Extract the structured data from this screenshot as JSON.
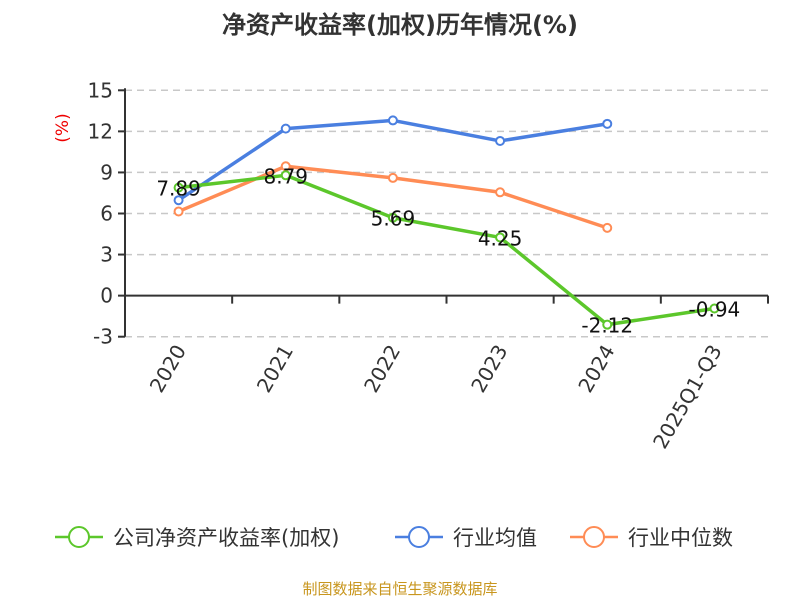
{
  "chart_data": {
    "type": "line",
    "title": "净资产收益率(加权)历年情况(%)",
    "ylabel": "(%)",
    "xlabel": "",
    "ylim": [
      -3,
      15
    ],
    "yticks": [
      "15",
      "12",
      "9",
      "6",
      "3",
      "0",
      "-3"
    ],
    "ytick_values": [
      15,
      12,
      9,
      6,
      3,
      0,
      -3
    ],
    "grid": true,
    "legend_position": "bottom",
    "categories": [
      "2020",
      "2021",
      "2022",
      "2023",
      "2024",
      "2025Q1-Q3"
    ],
    "series": [
      {
        "name": "公司净资产收益率(加权)",
        "color": "#5cc72b",
        "values": [
          7.89,
          8.79,
          5.69,
          4.25,
          -2.12,
          -0.94
        ],
        "labels": [
          "7.89",
          "8.79",
          "5.69",
          "4.25",
          "-2.12",
          "-0.94"
        ]
      },
      {
        "name": "行业均值",
        "color": "#4a7fe0",
        "values": [
          6.97,
          12.2,
          12.8,
          11.3,
          12.55,
          null
        ]
      },
      {
        "name": "行业中位数",
        "color": "#ff8c55",
        "values": [
          6.15,
          9.45,
          8.6,
          7.55,
          4.95,
          null
        ]
      }
    ],
    "footer": "制图数据来自恒生聚源数据库"
  }
}
